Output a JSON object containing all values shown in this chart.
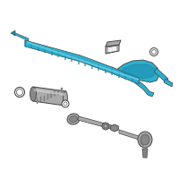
{
  "bg_color": "#ffffff",
  "hc": "#2bb0d0",
  "hc_dark": "#1a8aaa",
  "hc_light": "#5cc8e0",
  "gray1": "#cccccc",
  "gray2": "#aaaaaa",
  "gray3": "#888888",
  "gray4": "#666666",
  "bc": "#444444",
  "fig_width": 2.0,
  "fig_height": 2.0,
  "dpi": 100
}
